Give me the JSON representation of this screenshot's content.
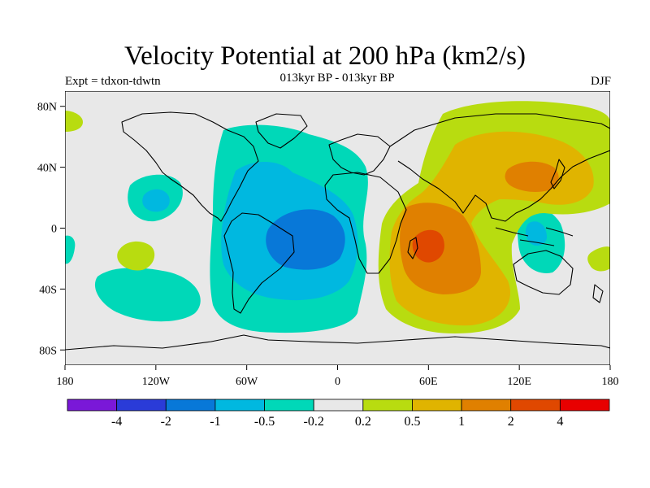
{
  "title": "Velocity Potential at 200 hPa (km2/s)",
  "left_label": "Expt = tdxon-tdwtn",
  "center_label": "013kyr BP - 013kyr BP",
  "right_label": "DJF",
  "lon_ticks": [
    "180",
    "120W",
    "60W",
    "0",
    "60E",
    "120E",
    "180"
  ],
  "lat_ticks": [
    "80N",
    "40N",
    "0",
    "40S",
    "80S"
  ],
  "colorbar": {
    "colors": [
      "#7a18d8",
      "#2a3bd8",
      "#0878d8",
      "#00b8e0",
      "#00d8b8",
      "#e8e8e8",
      "#b8dc10",
      "#e0b400",
      "#e08000",
      "#e04800",
      "#e80000"
    ],
    "labels": [
      "-4",
      "-2",
      "-1",
      "-0.5",
      "-0.2",
      "0.2",
      "0.5",
      "1",
      "2",
      "4"
    ]
  },
  "colors": {
    "land_outline": "#000000",
    "neutral": "#e8e8e8",
    "cyan_light": "#00d8b8",
    "cyan": "#00b8e0",
    "blue": "#0878d8",
    "yellow_green": "#b8dc10",
    "orange_light": "#e0b400",
    "orange": "#e08000",
    "red_orange": "#e04800"
  }
}
